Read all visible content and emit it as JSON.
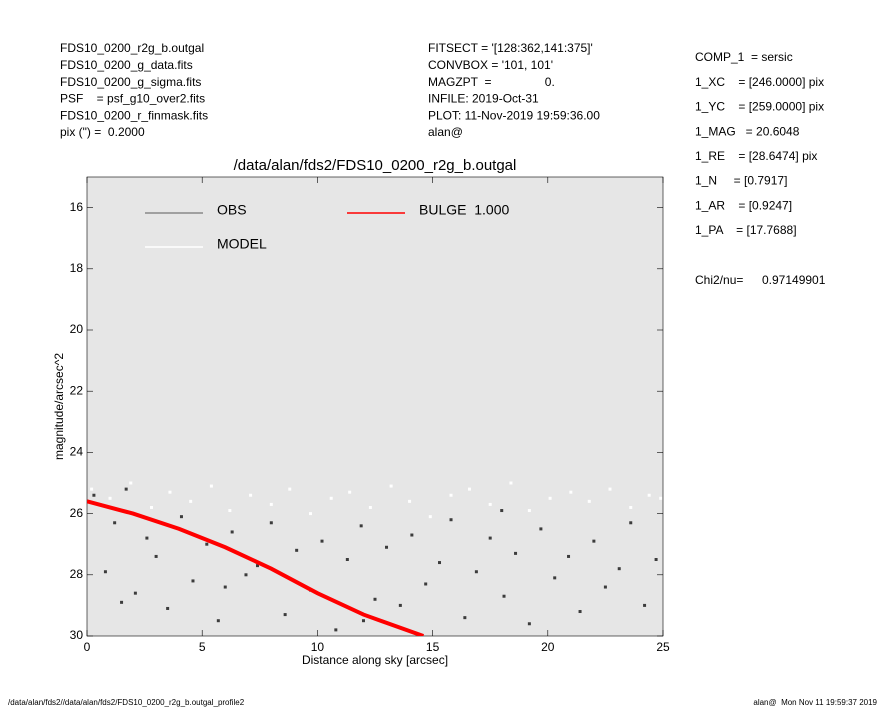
{
  "header": {
    "files": [
      "FDS10_0200_r2g_b.outgal",
      "FDS10_0200_g_data.fits",
      "FDS10_0200_g_sigma.fits",
      "PSF    = psf_g10_over2.fits",
      "FDS10_0200_r_finmask.fits",
      "pix (\") =  0.2000"
    ],
    "settings": [
      "FITSECT = '[128:362,141:375]'",
      "CONVBOX = '101, 101'",
      "MAGZPT  =                0.",
      "INFILE: 2019-Oct-31",
      "PLOT: 11-Nov-2019 19:59:36.00",
      "alan@"
    ],
    "params": [
      "COMP_1  = sersic",
      "1_XC    = [246.0000] pix",
      "1_YC    = [259.0000] pix",
      "1_MAG   = 20.6048",
      "1_RE    = [28.6474] pix",
      "1_N     = [0.7917]",
      "1_AR    = [0.9247]",
      "1_PA    = [17.7688]"
    ],
    "chi2_label": "Chi2/nu=",
    "chi2_value": "0.97149901"
  },
  "footer": {
    "left": "/data/alan/fds2//data/alan/fds2/FDS10_0200_r2g_b.outgal_profile2",
    "right": "alan@  Mon Nov 11 19:59:37 2019"
  },
  "chart_data": {
    "type": "scatter",
    "title": "/data/alan/fds2/FDS10_0200_r2g_b.outgal",
    "xlabel": "Distance along sky [arcsec]",
    "ylabel": "magnitude/arcsec^2",
    "xlim": [
      0,
      25
    ],
    "ylim": [
      30,
      15
    ],
    "xticks": [
      0,
      5,
      10,
      15,
      20,
      25
    ],
    "yticks": [
      16,
      18,
      20,
      22,
      24,
      26,
      28,
      30
    ],
    "series": [
      {
        "name": "OBS",
        "color": "#888888",
        "point_color": "#3c3c3c",
        "x": [
          0.3,
          0.8,
          1.2,
          1.7,
          2.1,
          2.6,
          3.0,
          3.5,
          4.1,
          4.6,
          5.2,
          5.7,
          6.3,
          6.9,
          7.4,
          8.0,
          8.6,
          9.1,
          9.7,
          10.2,
          10.8,
          11.3,
          11.9,
          12.5,
          13.0,
          13.6,
          14.1,
          14.7,
          15.3,
          15.8,
          16.4,
          16.9,
          17.5,
          18.1,
          18.6,
          19.2,
          19.7,
          20.3,
          20.9,
          21.4,
          22.0,
          22.5,
          23.1,
          23.6,
          24.2,
          24.7,
          1.5,
          6.0,
          12.0,
          18.0
        ],
        "values": [
          25.4,
          27.9,
          26.3,
          25.2,
          28.6,
          26.8,
          27.4,
          29.1,
          26.1,
          28.2,
          27.0,
          29.5,
          26.6,
          28.0,
          27.7,
          26.3,
          29.3,
          27.2,
          28.5,
          26.9,
          29.8,
          27.5,
          26.4,
          28.8,
          27.1,
          29.0,
          26.7,
          28.3,
          27.6,
          26.2,
          29.4,
          27.9,
          26.8,
          28.7,
          27.3,
          29.6,
          26.5,
          28.1,
          27.4,
          29.2,
          26.9,
          28.4,
          27.8,
          26.3,
          29.0,
          27.5,
          28.9,
          28.4,
          29.5,
          25.9
        ]
      },
      {
        "name": "MODEL",
        "color": "#ffffff",
        "point_color": "#ffffff",
        "x": [
          0.2,
          1.0,
          1.9,
          2.8,
          3.6,
          4.5,
          5.4,
          6.2,
          7.1,
          8.0,
          8.8,
          9.7,
          10.6,
          11.4,
          12.3,
          13.2,
          14.0,
          14.9,
          15.8,
          16.6,
          17.5,
          18.4,
          19.2,
          20.1,
          21.0,
          21.8,
          22.7,
          23.6,
          24.4,
          24.9
        ],
        "values": [
          25.2,
          25.5,
          25.0,
          25.8,
          25.3,
          25.6,
          25.1,
          25.9,
          25.4,
          25.7,
          25.2,
          26.0,
          25.5,
          25.3,
          25.8,
          25.1,
          25.6,
          26.1,
          25.4,
          25.2,
          25.7,
          25.0,
          25.9,
          25.5,
          25.3,
          25.6,
          25.2,
          25.8,
          25.4,
          25.5
        ]
      },
      {
        "name": "BULGE  1.000",
        "color": "#ff0000",
        "line": true,
        "x": [
          0,
          2,
          4,
          6,
          8,
          10,
          12,
          14.6
        ],
        "values": [
          25.6,
          26.0,
          26.5,
          27.1,
          27.8,
          28.6,
          29.3,
          30.0
        ]
      }
    ]
  }
}
